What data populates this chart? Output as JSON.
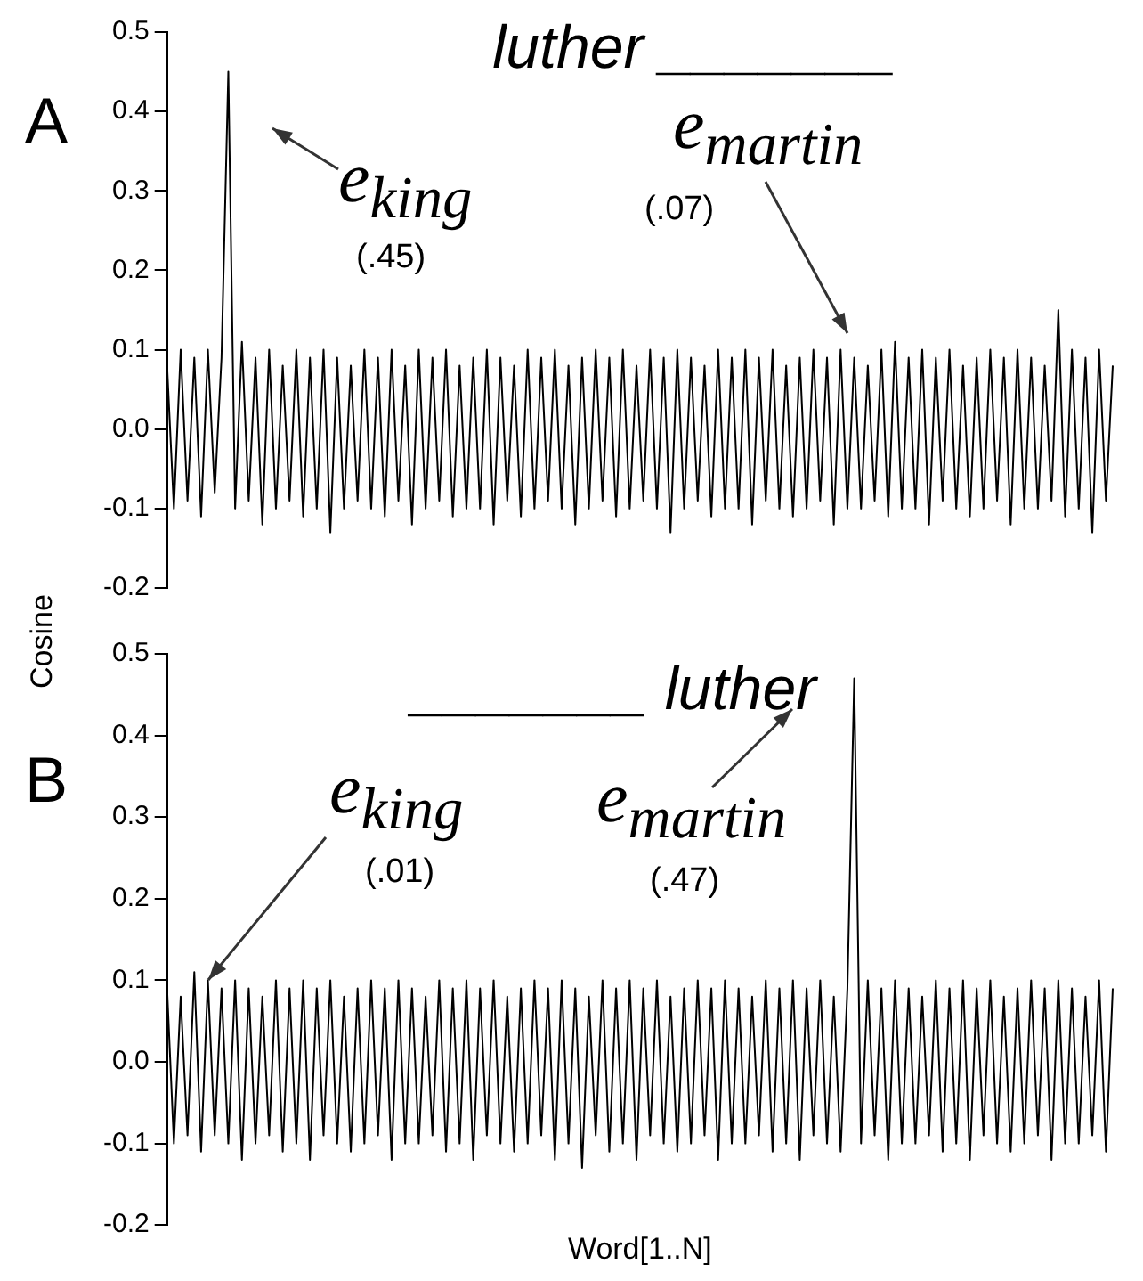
{
  "chart_data": [
    {
      "type": "line",
      "title": "luther _______",
      "ylabel": "Cosine",
      "color": "#000000",
      "ylim": [
        -0.2,
        0.5
      ],
      "yticks": [
        {
          "value": -0.2,
          "label": "-0.2"
        },
        {
          "value": -0.1,
          "label": "-0.1"
        },
        {
          "value": 0,
          "label": "0.0"
        },
        {
          "value": 0.1,
          "label": "0.1"
        },
        {
          "value": 0.2,
          "label": "0.2"
        },
        {
          "value": 0.3,
          "label": "0.3"
        },
        {
          "value": 0.4,
          "label": "0.4"
        },
        {
          "value": 0.5,
          "label": "0.5"
        }
      ],
      "tick_labels": "y",
      "grid": false,
      "marker": "none",
      "annotations": [
        "A",
        "e$_{king}$",
        "(.45)",
        "e$_{martin}$",
        "(.07)"
      ],
      "categories": [
        null,
        null,
        null,
        null,
        null,
        null,
        null,
        null,
        null,
        null,
        null,
        null,
        null,
        null,
        null,
        null,
        null,
        null,
        null,
        null,
        null,
        null,
        null,
        null,
        null,
        null,
        null,
        null,
        null,
        null,
        null,
        null,
        null,
        null,
        null,
        null,
        null,
        null,
        null,
        null,
        null,
        null,
        null,
        null,
        null,
        null,
        null,
        null,
        null,
        null,
        null,
        null,
        null,
        null,
        null,
        null,
        null,
        null,
        null,
        null,
        null,
        null,
        null,
        null,
        null,
        null,
        null,
        null,
        null,
        null,
        null,
        null,
        null,
        null,
        null,
        null,
        null,
        null,
        null,
        null,
        null,
        null,
        null,
        null,
        null,
        null,
        null,
        null,
        null,
        null,
        null,
        null,
        null,
        null,
        null,
        null,
        null,
        null,
        null,
        null,
        null,
        null,
        null,
        null,
        null,
        null,
        null,
        null,
        null,
        null,
        null,
        null,
        null,
        null,
        null,
        null,
        null,
        null,
        null,
        null,
        null,
        null,
        null,
        null,
        null,
        null,
        null,
        null,
        null,
        null,
        null,
        null,
        null,
        null,
        null,
        null,
        null,
        null,
        null,
        null
      ],
      "values": [
        0.08,
        -0.1,
        0.1,
        -0.09,
        0.09,
        -0.11,
        0.1,
        -0.08,
        0.09,
        0.45,
        -0.1,
        0.11,
        -0.09,
        0.09,
        -0.12,
        0.1,
        -0.1,
        0.08,
        -0.09,
        0.1,
        -0.11,
        0.09,
        -0.1,
        0.1,
        -0.13,
        0.09,
        -0.1,
        0.08,
        -0.09,
        0.1,
        -0.1,
        0.09,
        -0.11,
        0.1,
        -0.09,
        0.08,
        -0.12,
        0.1,
        -0.1,
        0.09,
        -0.09,
        0.1,
        -0.11,
        0.08,
        -0.1,
        0.09,
        -0.1,
        0.1,
        -0.12,
        0.09,
        -0.09,
        0.08,
        -0.11,
        0.1,
        -0.1,
        0.09,
        -0.09,
        0.1,
        -0.1,
        0.08,
        -0.12,
        0.09,
        -0.1,
        0.1,
        -0.09,
        0.09,
        -0.11,
        0.1,
        -0.1,
        0.08,
        -0.09,
        0.1,
        -0.1,
        0.09,
        -0.13,
        0.1,
        -0.1,
        0.09,
        -0.09,
        0.08,
        -0.11,
        0.1,
        -0.1,
        0.09,
        -0.1,
        0.1,
        -0.12,
        0.09,
        -0.09,
        0.1,
        -0.1,
        0.08,
        -0.11,
        0.09,
        -0.1,
        0.1,
        -0.09,
        0.09,
        -0.12,
        0.1,
        -0.1,
        0.09,
        -0.1,
        0.08,
        -0.09,
        0.1,
        -0.11,
        0.11,
        -0.1,
        0.09,
        -0.1,
        0.1,
        -0.12,
        0.09,
        -0.09,
        0.1,
        -0.1,
        0.08,
        -0.11,
        0.09,
        -0.1,
        0.1,
        -0.09,
        0.09,
        -0.12,
        0.1,
        -0.1,
        0.09,
        -0.1,
        0.08,
        -0.09,
        0.15,
        -0.11,
        0.1,
        -0.1,
        0.09,
        -0.13,
        0.1,
        -0.09,
        0.08
      ]
    },
    {
      "type": "line",
      "title": "_______ luther",
      "xlabel": "Word[1..N]",
      "color": "#000000",
      "ylim": [
        -0.2,
        0.5
      ],
      "yticks": [
        {
          "value": -0.2,
          "label": "-0.2"
        },
        {
          "value": -0.1,
          "label": "-0.1"
        },
        {
          "value": 0,
          "label": "0.0"
        },
        {
          "value": 0.1,
          "label": "0.1"
        },
        {
          "value": 0.2,
          "label": "0.2"
        },
        {
          "value": 0.3,
          "label": "0.3"
        },
        {
          "value": 0.4,
          "label": "0.4"
        },
        {
          "value": 0.5,
          "label": "0.5"
        }
      ],
      "tick_labels": "y",
      "grid": false,
      "marker": "none",
      "annotations": [
        "B",
        "e$_{king}$",
        "(.01)",
        "e$_{martin}$",
        "(.47)"
      ],
      "categories": [
        null,
        null,
        null,
        null,
        null,
        null,
        null,
        null,
        null,
        null,
        null,
        null,
        null,
        null,
        null,
        null,
        null,
        null,
        null,
        null,
        null,
        null,
        null,
        null,
        null,
        null,
        null,
        null,
        null,
        null,
        null,
        null,
        null,
        null,
        null,
        null,
        null,
        null,
        null,
        null,
        null,
        null,
        null,
        null,
        null,
        null,
        null,
        null,
        null,
        null,
        null,
        null,
        null,
        null,
        null,
        null,
        null,
        null,
        null,
        null,
        null,
        null,
        null,
        null,
        null,
        null,
        null,
        null,
        null,
        null,
        null,
        null,
        null,
        null,
        null,
        null,
        null,
        null,
        null,
        null,
        null,
        null,
        null,
        null,
        null,
        null,
        null,
        null,
        null,
        null,
        null,
        null,
        null,
        null,
        null,
        null,
        null,
        null,
        null,
        null,
        null,
        null,
        null,
        null,
        null,
        null,
        null,
        null,
        null,
        null,
        null,
        null,
        null,
        null,
        null,
        null,
        null,
        null,
        null,
        null,
        null,
        null,
        null,
        null,
        null,
        null,
        null,
        null,
        null,
        null,
        null,
        null,
        null,
        null,
        null,
        null,
        null,
        null,
        null,
        null
      ],
      "values": [
        0.09,
        -0.1,
        0.08,
        -0.09,
        0.11,
        -0.11,
        0.1,
        -0.09,
        0.09,
        -0.1,
        0.1,
        -0.12,
        0.09,
        -0.1,
        0.08,
        -0.09,
        0.1,
        -0.11,
        0.09,
        -0.1,
        0.1,
        -0.12,
        0.09,
        -0.09,
        0.1,
        -0.1,
        0.08,
        -0.11,
        0.09,
        -0.1,
        0.1,
        -0.09,
        0.09,
        -0.12,
        0.1,
        -0.1,
        0.09,
        -0.1,
        0.08,
        -0.09,
        0.1,
        -0.11,
        0.09,
        -0.1,
        0.1,
        -0.12,
        0.09,
        -0.09,
        0.1,
        -0.1,
        0.08,
        -0.11,
        0.09,
        -0.1,
        0.1,
        -0.09,
        0.09,
        -0.12,
        0.1,
        -0.1,
        0.09,
        -0.13,
        0.08,
        -0.09,
        0.1,
        -0.11,
        0.09,
        -0.1,
        0.1,
        -0.12,
        0.09,
        -0.09,
        0.1,
        -0.1,
        0.08,
        -0.11,
        0.09,
        -0.1,
        0.1,
        -0.09,
        0.09,
        -0.12,
        0.1,
        -0.1,
        0.09,
        -0.1,
        0.08,
        -0.09,
        0.1,
        -0.11,
        0.09,
        -0.1,
        0.1,
        -0.12,
        0.09,
        -0.09,
        0.1,
        -0.1,
        0.08,
        -0.11,
        0.09,
        0.47,
        -0.1,
        0.1,
        -0.09,
        0.09,
        -0.12,
        0.1,
        -0.1,
        0.09,
        -0.1,
        0.08,
        -0.09,
        0.1,
        -0.11,
        0.09,
        -0.1,
        0.1,
        -0.12,
        0.09,
        -0.09,
        0.1,
        -0.1,
        0.08,
        -0.11,
        0.09,
        -0.1,
        0.1,
        -0.09,
        0.09,
        -0.12,
        0.1,
        -0.1,
        0.09,
        -0.1,
        0.08,
        -0.09,
        0.1,
        -0.11,
        0.09
      ]
    }
  ]
}
